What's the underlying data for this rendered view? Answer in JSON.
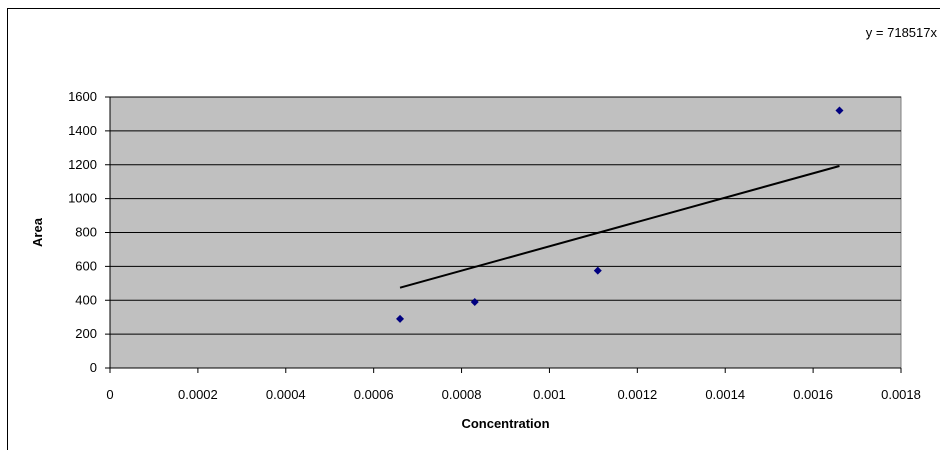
{
  "chart_data": {
    "type": "scatter",
    "title": "",
    "xlabel": "Concentration",
    "ylabel": "Area",
    "xlim": [
      0,
      0.0018
    ],
    "ylim": [
      0,
      1600
    ],
    "xticks": [
      "0",
      "0.0002",
      "0.0004",
      "0.0006",
      "0.0008",
      "0.001",
      "0.0012",
      "0.0014",
      "0.0016",
      "0.0018"
    ],
    "yticks": [
      "0",
      "200",
      "400",
      "600",
      "800",
      "1000",
      "1200",
      "1400",
      "1600"
    ],
    "grid": "horizontal",
    "plot_background": "#C0C0C0",
    "marker_color": "#000080",
    "series": [
      {
        "x": [
          0.00066,
          0.00083,
          0.00111,
          0.00166
        ],
        "y": [
          290,
          390,
          575,
          1520
        ]
      }
    ],
    "trendline": {
      "slope": 718517,
      "x": [
        0.00066,
        0.00166
      ],
      "equation": "y = 718517x"
    }
  }
}
